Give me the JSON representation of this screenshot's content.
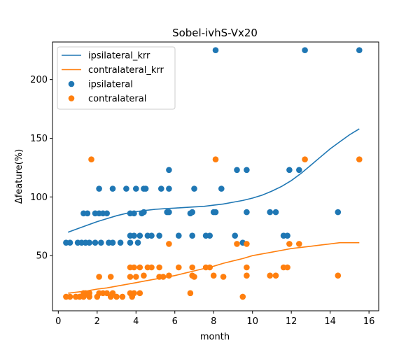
{
  "chart_data": {
    "type": "scatter",
    "title": "Sobel-ivhS-Vx20",
    "xlabel": "month",
    "ylabel": "Δfeature(%)",
    "xlim": [
      -0.3,
      16.5
    ],
    "ylim": [
      3,
      232
    ],
    "xticks": [
      0,
      2,
      4,
      6,
      8,
      10,
      12,
      14,
      16
    ],
    "yticks": [
      50,
      100,
      150,
      200
    ],
    "grid": false,
    "legend_position": "top-left",
    "legend": [
      {
        "label": "ipsilateral_krr",
        "kind": "line",
        "color": "#1f77b4"
      },
      {
        "label": "contralateral_krr",
        "kind": "line",
        "color": "#ff7f0e"
      },
      {
        "label": "ipsilateral",
        "kind": "marker",
        "color": "#1f77b4"
      },
      {
        "label": "contralateral",
        "kind": "marker",
        "color": "#ff7f0e"
      }
    ],
    "series": [
      {
        "name": "ipsilateral_krr",
        "kind": "line",
        "color": "#1f77b4",
        "x": [
          0.5,
          1,
          1.5,
          2,
          2.5,
          3,
          3.5,
          4,
          4.5,
          5,
          5.5,
          6,
          6.5,
          7,
          7.5,
          8,
          8.5,
          9,
          9.5,
          10,
          10.5,
          11,
          11.5,
          12,
          12.5,
          13,
          13.5,
          14,
          14.5,
          15,
          15.5
        ],
        "y": [
          70,
          73,
          76,
          79,
          81.5,
          84,
          86,
          87.5,
          88.5,
          89.5,
          90,
          90.5,
          91,
          91.5,
          92,
          93,
          94,
          95.5,
          97,
          99,
          101.5,
          105,
          109,
          114,
          120,
          127,
          134,
          141,
          147,
          153,
          158
        ]
      },
      {
        "name": "contralateral_krr",
        "kind": "line",
        "color": "#ff7f0e",
        "x": [
          0.5,
          1,
          1.5,
          2,
          2.5,
          3,
          3.5,
          4,
          4.5,
          5,
          5.5,
          6,
          6.5,
          7,
          7.5,
          8,
          8.5,
          9,
          9.5,
          10,
          10.5,
          11,
          11.5,
          12,
          12.5,
          13,
          13.5,
          14,
          14.5,
          15,
          15.5
        ],
        "y": [
          18,
          19,
          20,
          21.5,
          22.5,
          24,
          25.5,
          27,
          28.5,
          30,
          31.5,
          33,
          35,
          37,
          39,
          41,
          43.5,
          45.5,
          47.5,
          50,
          51.5,
          53,
          54.5,
          56,
          57,
          58,
          59,
          60,
          61,
          61,
          61
        ]
      },
      {
        "name": "ipsilateral",
        "kind": "scatter",
        "color": "#1f77b4",
        "points": [
          [
            0.4,
            61
          ],
          [
            0.6,
            61
          ],
          [
            1.0,
            61
          ],
          [
            1.2,
            61
          ],
          [
            1.4,
            61
          ],
          [
            1.6,
            61
          ],
          [
            1.9,
            61
          ],
          [
            2.2,
            61
          ],
          [
            2.6,
            61
          ],
          [
            2.8,
            61
          ],
          [
            3.2,
            61
          ],
          [
            3.7,
            61
          ],
          [
            4.1,
            61
          ],
          [
            9.5,
            61
          ],
          [
            1.3,
            86
          ],
          [
            1.5,
            86
          ],
          [
            1.9,
            86
          ],
          [
            2.1,
            86
          ],
          [
            2.3,
            86
          ],
          [
            2.5,
            86
          ],
          [
            3.7,
            86
          ],
          [
            3.9,
            86
          ],
          [
            4.3,
            86
          ],
          [
            4.4,
            87
          ],
          [
            5.6,
            87
          ],
          [
            5.7,
            87
          ],
          [
            6.8,
            86
          ],
          [
            6.9,
            87
          ],
          [
            8.0,
            87
          ],
          [
            8.1,
            87
          ],
          [
            9.7,
            87
          ],
          [
            10.9,
            87
          ],
          [
            11.2,
            87
          ],
          [
            14.4,
            87
          ],
          [
            2.1,
            107
          ],
          [
            2.8,
            107
          ],
          [
            3.5,
            107
          ],
          [
            4.0,
            107
          ],
          [
            4.4,
            107
          ],
          [
            4.5,
            107
          ],
          [
            5.3,
            107
          ],
          [
            5.7,
            107
          ],
          [
            7.0,
            107
          ],
          [
            8.4,
            107
          ],
          [
            3.7,
            67
          ],
          [
            3.9,
            67
          ],
          [
            4.2,
            67
          ],
          [
            4.6,
            67
          ],
          [
            4.8,
            67
          ],
          [
            5.2,
            67
          ],
          [
            6.2,
            67
          ],
          [
            6.9,
            67
          ],
          [
            7.6,
            67
          ],
          [
            7.8,
            67
          ],
          [
            9.1,
            67
          ],
          [
            11.6,
            67
          ],
          [
            11.8,
            67
          ],
          [
            5.7,
            123
          ],
          [
            9.2,
            123
          ],
          [
            9.7,
            123
          ],
          [
            11.9,
            123
          ],
          [
            12.4,
            123
          ],
          [
            8.1,
            225
          ],
          [
            12.7,
            225
          ],
          [
            15.5,
            225
          ]
        ]
      },
      {
        "name": "contralateral",
        "kind": "scatter",
        "color": "#ff7f0e",
        "points": [
          [
            0.4,
            15
          ],
          [
            0.6,
            15
          ],
          [
            0.9,
            15
          ],
          [
            1.1,
            15
          ],
          [
            1.3,
            15
          ],
          [
            1.6,
            15
          ],
          [
            2.0,
            15
          ],
          [
            2.7,
            15
          ],
          [
            3.0,
            15
          ],
          [
            3.3,
            15
          ],
          [
            3.8,
            15
          ],
          [
            9.5,
            15
          ],
          [
            1.3,
            18
          ],
          [
            1.4,
            18
          ],
          [
            1.6,
            18
          ],
          [
            2.1,
            18
          ],
          [
            2.3,
            18
          ],
          [
            2.5,
            18
          ],
          [
            2.8,
            18
          ],
          [
            3.7,
            18
          ],
          [
            3.9,
            18
          ],
          [
            4.2,
            18
          ],
          [
            6.8,
            18
          ],
          [
            2.1,
            32
          ],
          [
            2.7,
            32
          ],
          [
            3.7,
            32
          ],
          [
            4.0,
            32
          ],
          [
            4.4,
            33
          ],
          [
            5.2,
            32
          ],
          [
            5.4,
            32
          ],
          [
            5.7,
            33
          ],
          [
            6.9,
            33
          ],
          [
            7.0,
            32
          ],
          [
            8.0,
            33
          ],
          [
            8.5,
            32
          ],
          [
            9.7,
            33
          ],
          [
            10.9,
            33
          ],
          [
            11.2,
            33
          ],
          [
            14.4,
            33
          ],
          [
            3.7,
            40
          ],
          [
            3.9,
            40
          ],
          [
            4.2,
            40
          ],
          [
            4.6,
            40
          ],
          [
            4.8,
            40
          ],
          [
            5.2,
            40
          ],
          [
            6.2,
            40
          ],
          [
            6.9,
            40
          ],
          [
            7.6,
            40
          ],
          [
            7.8,
            40
          ],
          [
            9.7,
            40
          ],
          [
            11.6,
            40
          ],
          [
            11.8,
            40
          ],
          [
            5.7,
            60
          ],
          [
            9.2,
            60
          ],
          [
            9.7,
            60
          ],
          [
            11.9,
            60
          ],
          [
            12.4,
            60
          ],
          [
            1.7,
            132
          ],
          [
            8.1,
            132
          ],
          [
            12.7,
            132
          ],
          [
            15.5,
            132
          ]
        ]
      }
    ]
  }
}
